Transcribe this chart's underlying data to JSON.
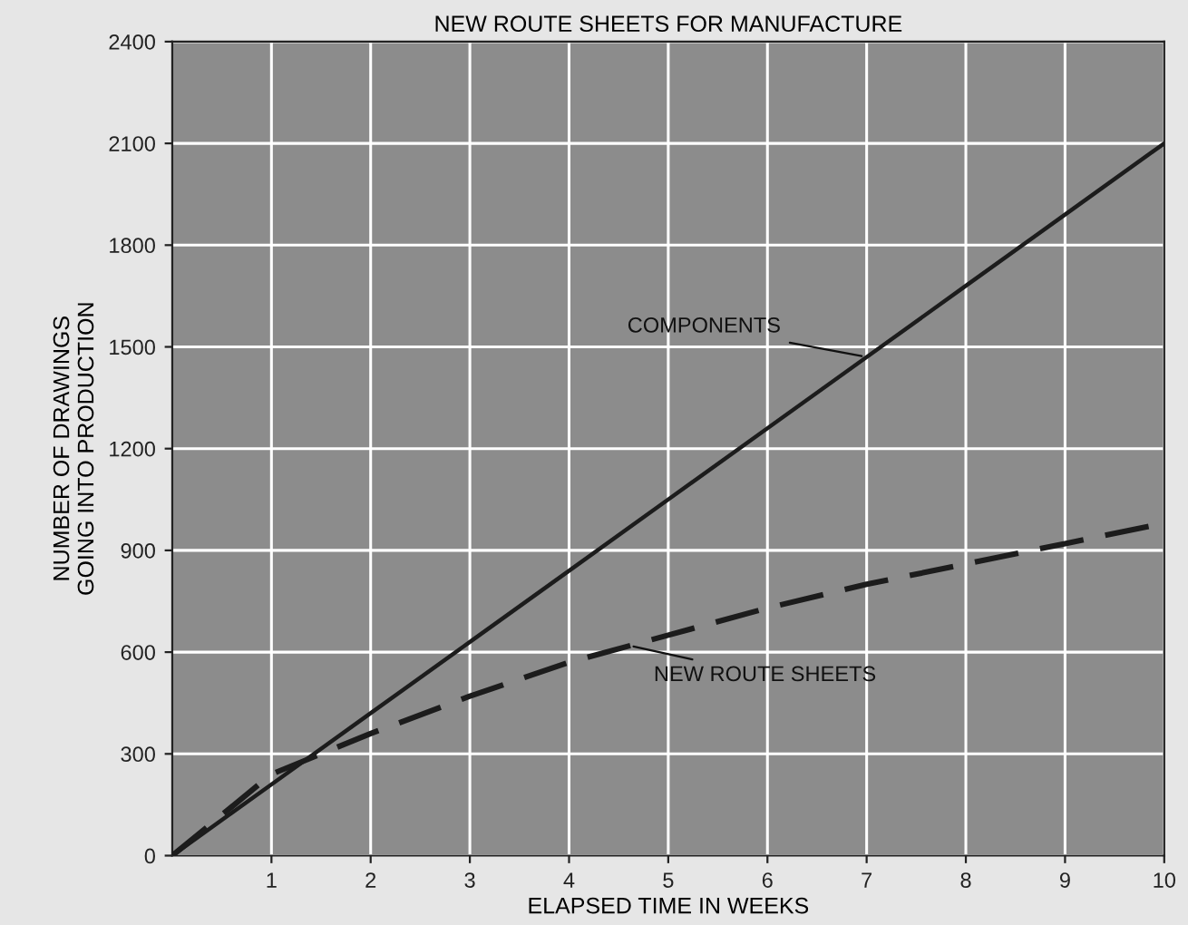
{
  "chart_data": {
    "type": "line",
    "title": "NEW ROUTE SHEETS FOR MANUFACTURE",
    "xlabel": "ELAPSED TIME IN WEEKS",
    "ylabel": "NUMBER OF DRAWINGS\nGOING INTO PRODUCTION",
    "x": [
      0,
      1,
      2,
      3,
      4,
      5,
      6,
      7,
      8,
      9,
      10
    ],
    "series": [
      {
        "color": "#1c1c1c",
        "line_style": "solid",
        "values": [
          0,
          210,
          420,
          630,
          840,
          1050,
          1260,
          1470,
          1680,
          1890,
          2100
        ]
      },
      {
        "color": "#1c1c1c",
        "line_style": "dashed",
        "values": [
          0,
          240,
          360,
          470,
          570,
          650,
          730,
          800,
          860,
          920,
          980
        ]
      }
    ],
    "annotations": [
      {
        "text": "COMPONENTS",
        "x": 7,
        "y": 1470
      },
      {
        "text": "NEW ROUTE SHEETS",
        "x": 4.6,
        "y": 620
      }
    ],
    "xlim": [
      0,
      10
    ],
    "xticks": [
      1,
      2,
      3,
      4,
      5,
      6,
      7,
      8,
      9,
      10
    ],
    "ylim": [
      0,
      2400
    ],
    "yticks": [
      0,
      300,
      600,
      900,
      1200,
      1500,
      1800,
      2100,
      2400
    ],
    "grid": true,
    "marker": "none",
    "legend": false
  }
}
